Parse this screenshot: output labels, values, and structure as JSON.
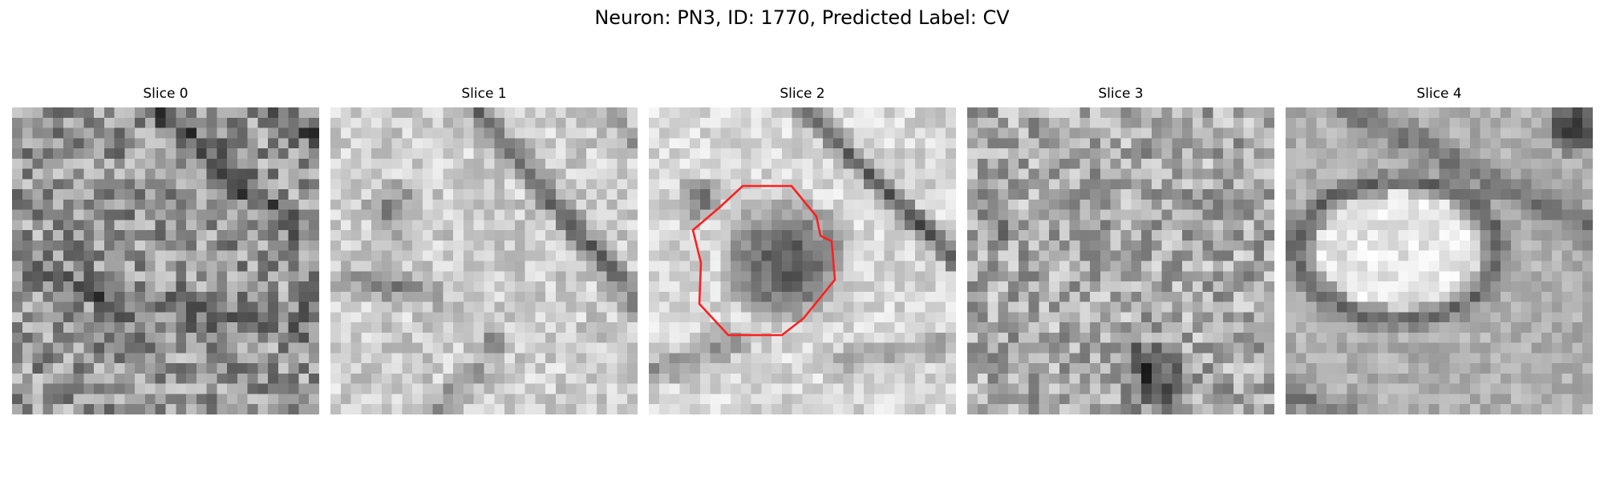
{
  "figure": {
    "title": "Neuron: PN3, ID: 1770, Predicted Label: CV"
  },
  "panels": [
    {
      "title": "Slice 0",
      "texture": "dense-granular-noise",
      "annotated": false
    },
    {
      "title": "Slice 1",
      "texture": "light-noise-with-diagonal-dark-band",
      "annotated": false
    },
    {
      "title": "Slice 2",
      "texture": "dark-cell-body-with-diagonal-membrane",
      "annotated": true
    },
    {
      "title": "Slice 3",
      "texture": "medium-granular-noise",
      "annotated": false
    },
    {
      "title": "Slice 4",
      "texture": "bright-oval-cell-with-dark-ring",
      "annotated": false
    }
  ],
  "colormap": "grayscale",
  "annotation": {
    "shape": "octagon-outline",
    "color": "#ff1f1f",
    "slice": "Slice 2"
  }
}
